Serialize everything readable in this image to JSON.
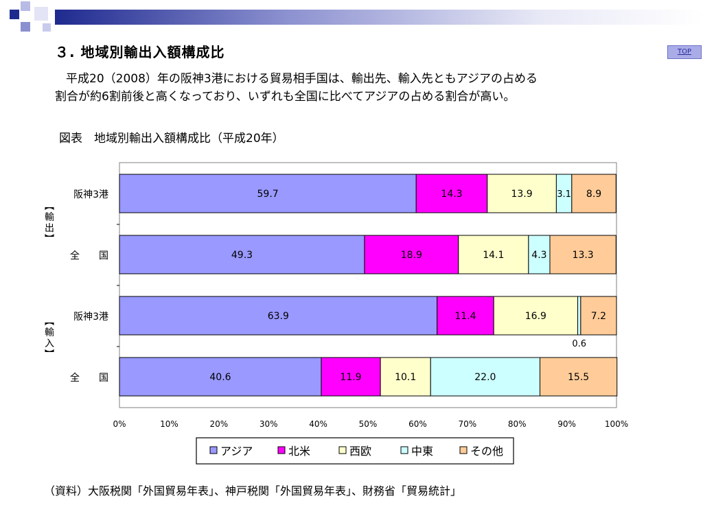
{
  "header": {
    "title": "３. 地域別輸出入額構成比",
    "top_link": "TOP"
  },
  "description": {
    "line1": "平成20（2008）年の阪神3港における貿易相手国は、輸出先、輸入先ともアジアの占める",
    "line2": "割合が約6割前後と高くなっており、いずれも全国に比べてアジアの占める割合が高い。"
  },
  "figure": {
    "title": "図表　地域別輸出入額構成比（平成20年）"
  },
  "source_note": "（資料）大阪税関「外国貿易年表」、神戸税関「外国貿易年表」、財務省「貿易統計」",
  "colors": {
    "asia": "#9999ff",
    "north_america": "#ff00ff",
    "western_europe": "#ffffcc",
    "middle_east": "#ccffff",
    "other": "#ffcc99",
    "bar_border": "#000000",
    "header_dark": "#1f2a8f"
  },
  "chart_data": {
    "type": "bar",
    "orientation": "horizontal",
    "stacked": "percent",
    "title": "",
    "groups": [
      {
        "label": "【輸出】",
        "categories": [
          "阪神3港",
          "全　　国"
        ]
      },
      {
        "label": "【輸入】",
        "categories": [
          "阪神3港",
          "全　　国"
        ]
      }
    ],
    "categories": [
      "阪神3港",
      "全　　国",
      "阪神3港",
      "全　　国"
    ],
    "series": [
      {
        "name": "アジア",
        "color": "#9999ff",
        "values": [
          59.7,
          49.3,
          63.9,
          40.6
        ]
      },
      {
        "name": "北米",
        "color": "#ff00ff",
        "values": [
          14.3,
          18.9,
          11.4,
          11.9
        ]
      },
      {
        "name": "西欧",
        "color": "#ffffcc",
        "values": [
          13.9,
          14.1,
          16.9,
          10.1
        ]
      },
      {
        "name": "中東",
        "color": "#ccffff",
        "values": [
          3.1,
          4.3,
          0.6,
          22.0
        ]
      },
      {
        "name": "その他",
        "color": "#ffcc99",
        "values": [
          8.9,
          13.3,
          7.2,
          15.5
        ]
      }
    ],
    "value_labels": [
      [
        "59.7",
        "14.3",
        "13.9",
        "3.1",
        "8.9"
      ],
      [
        "49.3",
        "18.9",
        "14.1",
        "4.3",
        "13.3"
      ],
      [
        "63.9",
        "11.4",
        "16.9",
        "0.6",
        "7.2"
      ],
      [
        "40.6",
        "11.9",
        "10.1",
        "22.0",
        "15.5"
      ]
    ],
    "xticks": [
      "0%",
      "10%",
      "20%",
      "30%",
      "40%",
      "50%",
      "60%",
      "70%",
      "80%",
      "90%",
      "100%"
    ],
    "xlim": [
      0,
      100
    ],
    "grid": false,
    "legend_position": "bottom"
  }
}
